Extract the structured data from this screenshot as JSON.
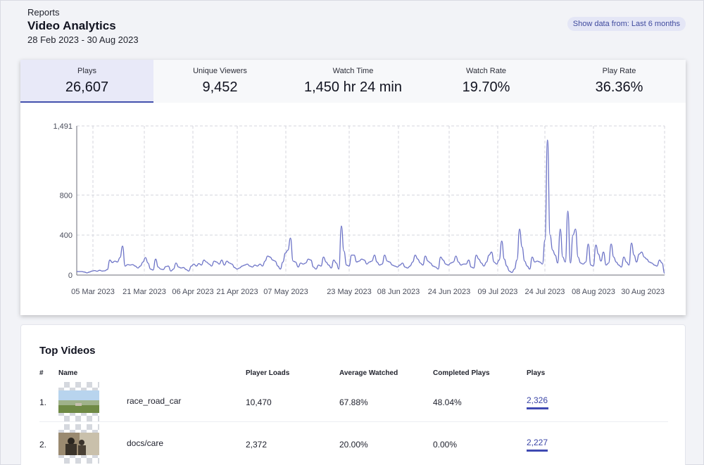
{
  "header": {
    "breadcrumb": "Reports",
    "title": "Video Analytics",
    "date_range": "28 Feb 2023 - 30 Aug 2023",
    "range_button": "Show data from: Last 6 months"
  },
  "metrics": [
    {
      "label": "Plays",
      "value": "26,607",
      "active": true
    },
    {
      "label": "Unique Viewers",
      "value": "9,452",
      "active": false
    },
    {
      "label": "Watch Time",
      "value": "1,450 hr 24 min",
      "active": false
    },
    {
      "label": "Watch Rate",
      "value": "19.70%",
      "active": false
    },
    {
      "label": "Play Rate",
      "value": "36.36%",
      "active": false
    }
  ],
  "colors": {
    "accent": "#4451ad",
    "line": "#6b72c6",
    "tab_active_bg": "#e8e9f8"
  },
  "chart_data": {
    "type": "line",
    "series": [
      {
        "values": [
          35,
          35,
          35,
          30,
          22,
          30,
          40,
          45,
          38,
          48,
          40,
          42,
          55,
          150,
          125,
          140,
          130,
          175,
          290,
          90,
          105,
          100,
          105,
          90,
          70,
          90,
          130,
          175,
          120,
          60,
          50,
          160,
          80,
          60,
          55,
          85,
          90,
          40,
          60,
          120,
          80,
          70,
          75,
          55,
          40,
          90,
          110,
          90,
          115,
          100,
          150,
          130,
          110,
          90,
          140,
          130,
          110,
          150,
          100,
          140,
          120,
          110,
          75,
          60,
          70,
          90,
          100,
          110,
          90,
          80,
          100,
          90,
          110,
          90,
          140,
          190,
          180,
          150,
          140,
          90,
          60,
          130,
          220,
          250,
          370,
          140,
          130,
          80,
          120,
          110,
          120,
          160,
          150,
          80,
          60,
          100,
          90,
          180,
          130,
          100,
          70,
          150,
          120,
          60,
          490,
          240,
          100,
          90,
          200,
          200,
          130,
          140,
          160,
          150,
          110,
          130,
          140,
          200,
          130,
          100,
          110,
          200,
          140,
          130,
          100,
          90,
          80,
          100,
          120,
          80,
          70,
          90,
          130,
          200,
          160,
          120,
          100,
          190,
          140,
          120,
          90,
          80,
          60,
          180,
          150,
          110,
          100,
          120,
          130,
          190,
          130,
          100,
          110,
          110,
          150,
          80,
          70,
          200,
          160,
          120,
          90,
          130,
          200,
          230,
          130,
          110,
          150,
          340,
          160,
          90,
          40,
          25,
          60,
          150,
          460,
          280,
          140,
          90,
          60,
          180,
          130,
          140,
          130,
          110,
          350,
          1350,
          400,
          250,
          200,
          120,
          460,
          180,
          130,
          640,
          120,
          400,
          460,
          180,
          120,
          110,
          130,
          310,
          100,
          90,
          300,
          210,
          140,
          230,
          100,
          120,
          310,
          180,
          130,
          100,
          80,
          180,
          130,
          100,
          320,
          200,
          130,
          210,
          230,
          180,
          160,
          130,
          120,
          100,
          90,
          150,
          120,
          20
        ],
        "color": "#6b72c6"
      }
    ],
    "ylim": [
      0,
      1491
    ],
    "y_ticks": [
      "1,491",
      "800",
      "400",
      "0"
    ],
    "x_tick_labels": [
      "05 Mar 2023",
      "21 Mar 2023",
      "06 Apr 2023",
      "21 Apr 2023",
      "07 May 2023",
      "23 May 2023",
      "08 Jun 2023",
      "24 Jun 2023",
      "09 Jul 2023",
      "24 Jul 2023",
      "08 Aug 2023",
      "30 Aug 2023"
    ],
    "grid": true
  },
  "top_videos": {
    "title": "Top Videos",
    "columns": [
      "#",
      "Name",
      "Player Loads",
      "Average Watched",
      "Completed Plays",
      "Plays"
    ],
    "rows": [
      {
        "rank": "1.",
        "name": "race_road_car",
        "player_loads": "10,470",
        "avg_watched": "67.88%",
        "completed": "48.04%",
        "plays": "2,326",
        "plays_share": 1.0
      },
      {
        "rank": "2.",
        "name": "docs/care",
        "player_loads": "2,372",
        "avg_watched": "20.00%",
        "completed": "0.00%",
        "plays": "2,227",
        "plays_share": 0.96
      }
    ]
  }
}
